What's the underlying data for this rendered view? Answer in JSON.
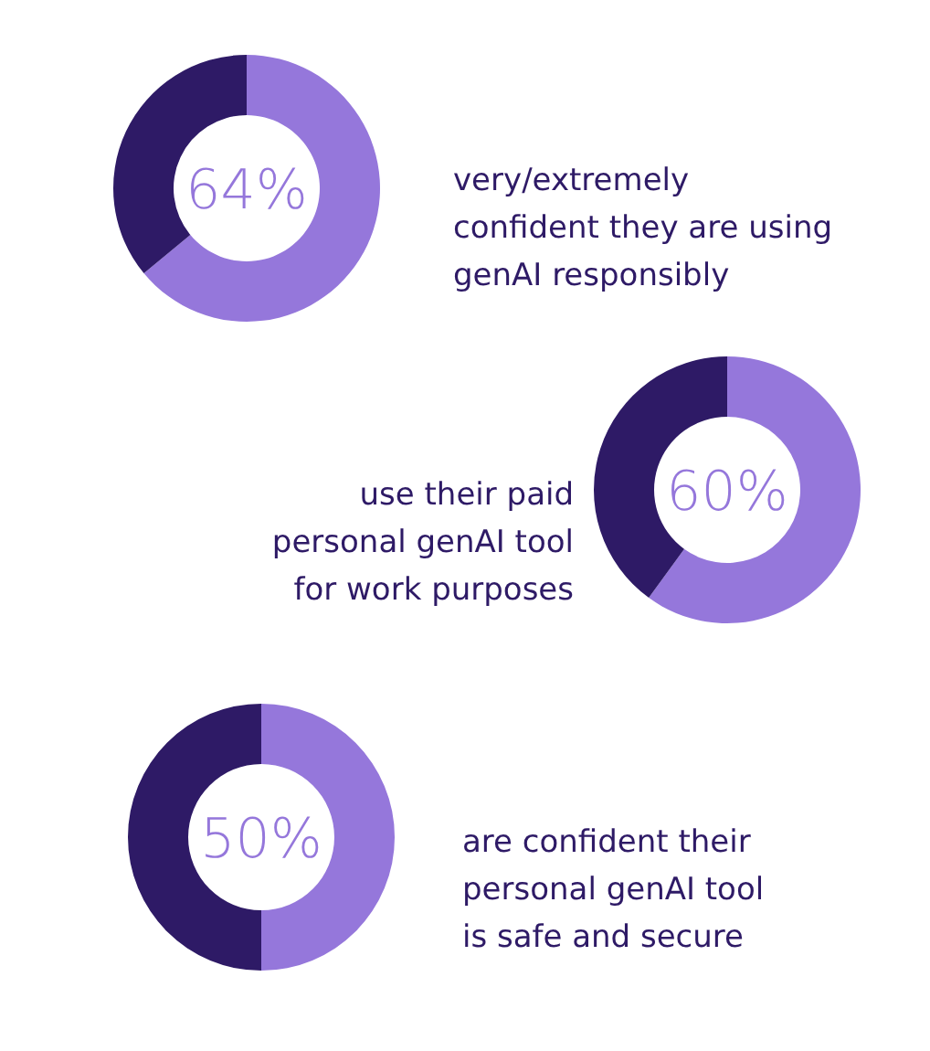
{
  "chart_data": [
    {
      "type": "donut",
      "categories": [
        null,
        null
      ],
      "values": [
        64,
        36
      ],
      "colors": [
        "#9577db",
        "#2e1a66"
      ],
      "value_labels": [
        "64%",
        null
      ],
      "annotations": [
        "very/extremely\nconfident they are using\ngenAI responsibly"
      ]
    },
    {
      "type": "donut",
      "categories": [
        null,
        null
      ],
      "values": [
        60,
        40
      ],
      "colors": [
        "#9577db",
        "#2e1a66"
      ],
      "value_labels": [
        "60%",
        null
      ],
      "annotations": [
        "use their paid\npersonal genAI tool\nfor work purposes"
      ]
    },
    {
      "type": "donut",
      "categories": [
        null,
        null
      ],
      "values": [
        50,
        50
      ],
      "colors": [
        "#9577db",
        "#2e1a66"
      ],
      "value_labels": [
        "50%",
        null
      ],
      "annotations": [
        "are confident their\npersonal genAI tool\nis safe and secure"
      ]
    }
  ]
}
